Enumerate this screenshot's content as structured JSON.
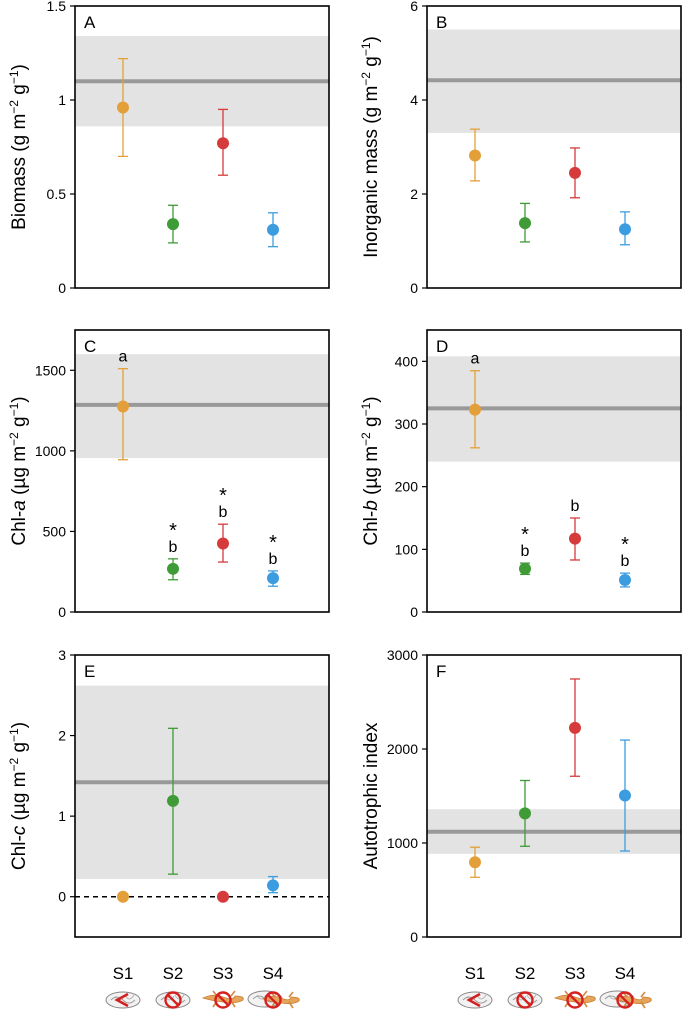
{
  "legend": {
    "categories": [
      "S1",
      "S2",
      "S3",
      "S4"
    ],
    "colors": [
      "#e3a03a",
      "#3e9b35",
      "#d63b3b",
      "#3b9de0"
    ],
    "category_icons": [
      "snail-with-red-v-icon",
      "snail-with-no-symbol-icon",
      "salamander-with-no-symbol-icon",
      "snail-and-salamander-with-no-symbol-icon"
    ]
  },
  "chart_data": [
    {
      "type": "scatter",
      "panel": "A",
      "ylabel_main": "Biomass (g m",
      "ylabel_sup1": "−2",
      "ylabel_mid": " g",
      "ylabel_sup2": "−1",
      "ylabel_end": ")",
      "ylim": [
        0,
        1.5
      ],
      "yticks": [
        0,
        0.5,
        1,
        1.5
      ],
      "ytick_labels": [
        "0",
        "0.5",
        "1",
        "1.5"
      ],
      "reference": {
        "mean": 1.1,
        "low": 0.86,
        "high": 1.34
      },
      "points": [
        {
          "category": "S1",
          "value": 0.96,
          "low": 0.7,
          "high": 1.22,
          "letter": "",
          "star": ""
        },
        {
          "category": "S2",
          "value": 0.34,
          "low": 0.24,
          "high": 0.44,
          "letter": "",
          "star": ""
        },
        {
          "category": "S3",
          "value": 0.77,
          "low": 0.6,
          "high": 0.95,
          "letter": "",
          "star": ""
        },
        {
          "category": "S4",
          "value": 0.31,
          "low": 0.22,
          "high": 0.4,
          "letter": "",
          "star": ""
        }
      ]
    },
    {
      "type": "scatter",
      "panel": "B",
      "ylabel_main": "Inorganic mass (g m",
      "ylabel_sup1": "−2",
      "ylabel_mid": " g",
      "ylabel_sup2": "−1",
      "ylabel_end": ")",
      "ylim": [
        0,
        6
      ],
      "yticks": [
        0,
        2,
        4,
        6
      ],
      "ytick_labels": [
        "0",
        "2",
        "4",
        "6"
      ],
      "reference": {
        "mean": 4.42,
        "low": 3.3,
        "high": 5.5
      },
      "points": [
        {
          "category": "S1",
          "value": 2.82,
          "low": 2.28,
          "high": 3.38,
          "letter": "",
          "star": ""
        },
        {
          "category": "S2",
          "value": 1.38,
          "low": 0.98,
          "high": 1.8,
          "letter": "",
          "star": ""
        },
        {
          "category": "S3",
          "value": 2.45,
          "low": 1.92,
          "high": 2.98,
          "letter": "",
          "star": ""
        },
        {
          "category": "S4",
          "value": 1.25,
          "low": 0.92,
          "high": 1.62,
          "letter": "",
          "star": ""
        }
      ]
    },
    {
      "type": "scatter",
      "panel": "C",
      "ylabel_main": "Chl-",
      "ylabel_italic": "a",
      "ylabel_rest": " (µg m",
      "ylabel_sup1": "−2",
      "ylabel_mid": " g",
      "ylabel_sup2": "−1",
      "ylabel_end": ")",
      "ylim": [
        0,
        1750
      ],
      "yticks": [
        0,
        500,
        1000,
        1500
      ],
      "ytick_labels": [
        "0",
        "500",
        "1000",
        "1500"
      ],
      "reference": {
        "mean": 1285,
        "low": 955,
        "high": 1600
      },
      "points": [
        {
          "category": "S1",
          "value": 1275,
          "low": 945,
          "high": 1510,
          "letter": "a",
          "star": ""
        },
        {
          "category": "S2",
          "value": 268,
          "low": 200,
          "high": 330,
          "letter": "b",
          "star": "*"
        },
        {
          "category": "S3",
          "value": 425,
          "low": 310,
          "high": 545,
          "letter": "b",
          "star": "*"
        },
        {
          "category": "S4",
          "value": 210,
          "low": 160,
          "high": 255,
          "letter": "b",
          "star": "*"
        }
      ]
    },
    {
      "type": "scatter",
      "panel": "D",
      "ylabel_main": "Chl-",
      "ylabel_italic": "b",
      "ylabel_rest": " (µg m",
      "ylabel_sup1": "−2",
      "ylabel_mid": " g",
      "ylabel_sup2": "−1",
      "ylabel_end": ")",
      "ylim": [
        0,
        450
      ],
      "yticks": [
        0,
        100,
        200,
        300,
        400
      ],
      "ytick_labels": [
        "0",
        "100",
        "200",
        "300",
        "400"
      ],
      "reference": {
        "mean": 325,
        "low": 240,
        "high": 408
      },
      "points": [
        {
          "category": "S1",
          "value": 323,
          "low": 262,
          "high": 385,
          "letter": "a",
          "star": ""
        },
        {
          "category": "S2",
          "value": 69,
          "low": 60,
          "high": 78,
          "letter": "b",
          "star": "*"
        },
        {
          "category": "S3",
          "value": 117,
          "low": 83,
          "high": 150,
          "letter": "b",
          "star": ""
        },
        {
          "category": "S4",
          "value": 51,
          "low": 40,
          "high": 62,
          "letter": "b",
          "star": "*"
        }
      ]
    },
    {
      "type": "scatter",
      "panel": "E",
      "ylabel_main": "Chl-",
      "ylabel_italic": "c",
      "ylabel_rest": " (µg m",
      "ylabel_sup1": "−2",
      "ylabel_mid": " g",
      "ylabel_sup2": "−1",
      "ylabel_end": ")",
      "ylim": [
        -0.5,
        3
      ],
      "yticks": [
        0,
        1,
        2,
        3
      ],
      "ytick_labels": [
        "0",
        "1",
        "2",
        "3"
      ],
      "zero_line": true,
      "reference": {
        "mean": 1.42,
        "low": 0.22,
        "high": 2.62
      },
      "points": [
        {
          "category": "S1",
          "value": 0.0,
          "low": 0.0,
          "high": 0.0,
          "letter": "",
          "star": ""
        },
        {
          "category": "S2",
          "value": 1.19,
          "low": 0.28,
          "high": 2.09,
          "letter": "",
          "star": ""
        },
        {
          "category": "S3",
          "value": 0.0,
          "low": 0.0,
          "high": 0.0,
          "letter": "",
          "star": ""
        },
        {
          "category": "S4",
          "value": 0.14,
          "low": 0.05,
          "high": 0.25,
          "letter": "",
          "star": ""
        }
      ]
    },
    {
      "type": "scatter",
      "panel": "F",
      "ylabel_plain": "Autotrophic index",
      "ylim": [
        0,
        3000
      ],
      "yticks": [
        0,
        1000,
        2000,
        3000
      ],
      "ytick_labels": [
        "0",
        "1000",
        "2000",
        "3000"
      ],
      "reference": {
        "mean": 1120,
        "low": 885,
        "high": 1360
      },
      "points": [
        {
          "category": "S1",
          "value": 795,
          "low": 635,
          "high": 955,
          "letter": "",
          "star": ""
        },
        {
          "category": "S2",
          "value": 1315,
          "low": 965,
          "high": 1665,
          "letter": "",
          "star": ""
        },
        {
          "category": "S3",
          "value": 2225,
          "low": 1710,
          "high": 2745,
          "letter": "",
          "star": ""
        },
        {
          "category": "S4",
          "value": 1505,
          "low": 915,
          "high": 2095,
          "letter": "",
          "star": ""
        }
      ]
    }
  ]
}
